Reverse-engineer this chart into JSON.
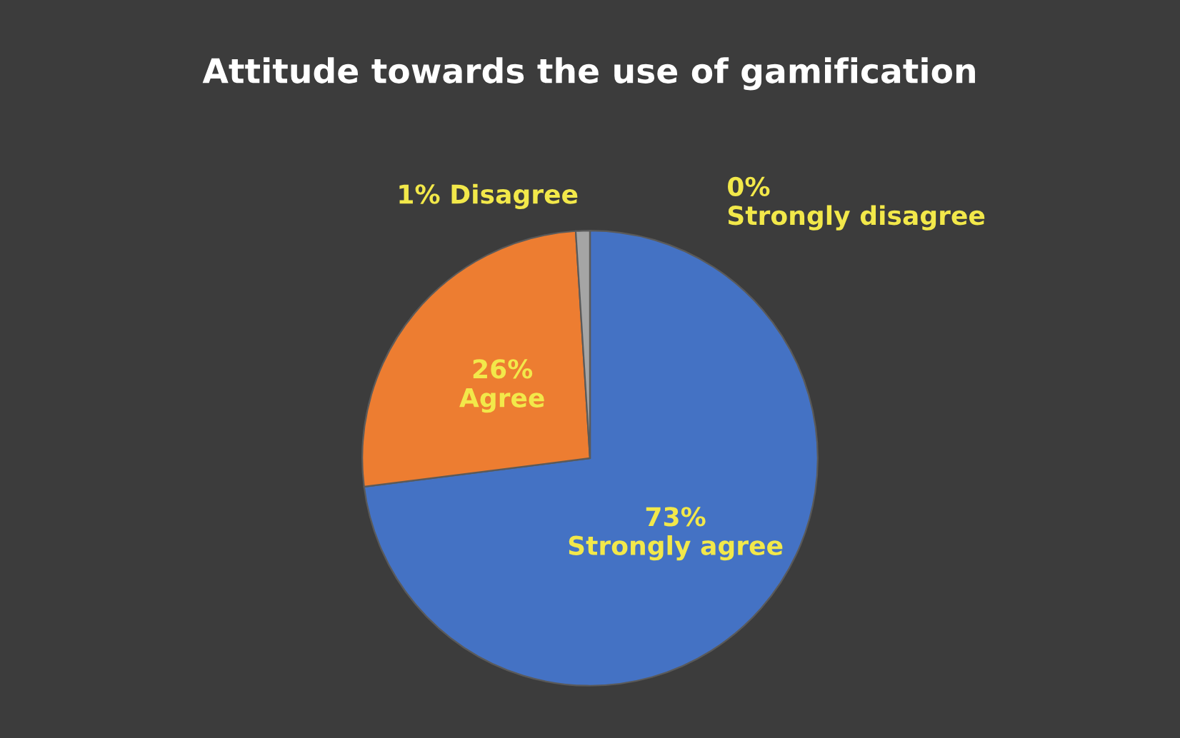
{
  "chart_data": {
    "type": "pie",
    "title": "Attitude towards the use of gamification",
    "categories": [
      "Strongly agree",
      "Agree",
      "Disagree",
      "Strongly disagree"
    ],
    "values": [
      73,
      26,
      1,
      0
    ],
    "value_labels": [
      "73%",
      "26%",
      "1%",
      "0%"
    ],
    "colors": [
      "#4472c4",
      "#ed7d31",
      "#a5a5a5",
      "#ffc000"
    ],
    "legend": false
  }
}
